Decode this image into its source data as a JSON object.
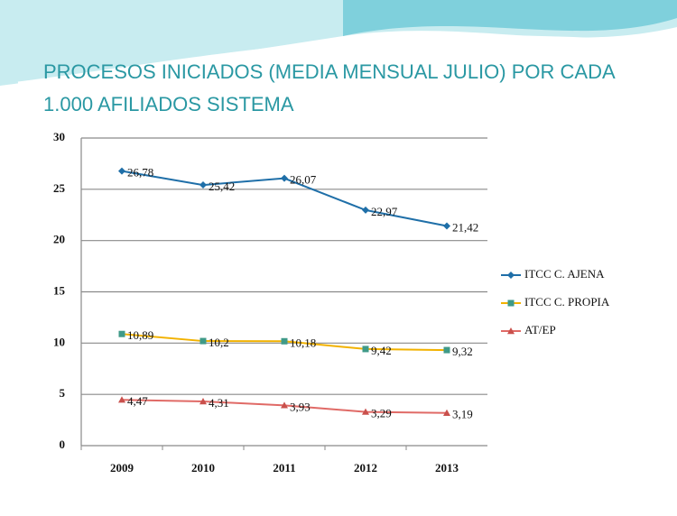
{
  "chart_data": {
    "type": "line",
    "title": "PROCESOS INICIADOS (MEDIA MENSUAL JULIO) POR CADA 1.000 AFILIADOS SISTEMA",
    "categories": [
      "2009",
      "2010",
      "2011",
      "2012",
      "2013"
    ],
    "series": [
      {
        "name": "ITCC C. AJENA",
        "color": "#1f6fa8",
        "marker_color": "#1f6fa8",
        "marker": "diamond",
        "values": [
          26.78,
          25.42,
          26.07,
          22.97,
          21.42
        ],
        "value_labels": [
          "26,78",
          "25,42",
          "26,07",
          "22,97",
          "21,42"
        ]
      },
      {
        "name": "ITCC C. PROPIA",
        "color": "#f2b200",
        "marker_color": "#3f9a88",
        "marker": "square",
        "values": [
          10.89,
          10.2,
          10.18,
          9.42,
          9.32
        ],
        "value_labels": [
          "10,89",
          "10,2",
          "10,18",
          "9,42",
          "9,32"
        ]
      },
      {
        "name": "AT/EP",
        "color": "#e06a66",
        "marker_color": "#c9504c",
        "marker": "triangle",
        "values": [
          4.47,
          4.31,
          3.93,
          3.29,
          3.19
        ],
        "value_labels": [
          "4,47",
          "4,31",
          "3,93",
          "3,29",
          "3,19"
        ]
      }
    ],
    "ylim": [
      0,
      30
    ],
    "yticks": [
      0,
      5,
      10,
      15,
      20,
      25,
      30
    ],
    "grid": true,
    "legend": "right"
  }
}
